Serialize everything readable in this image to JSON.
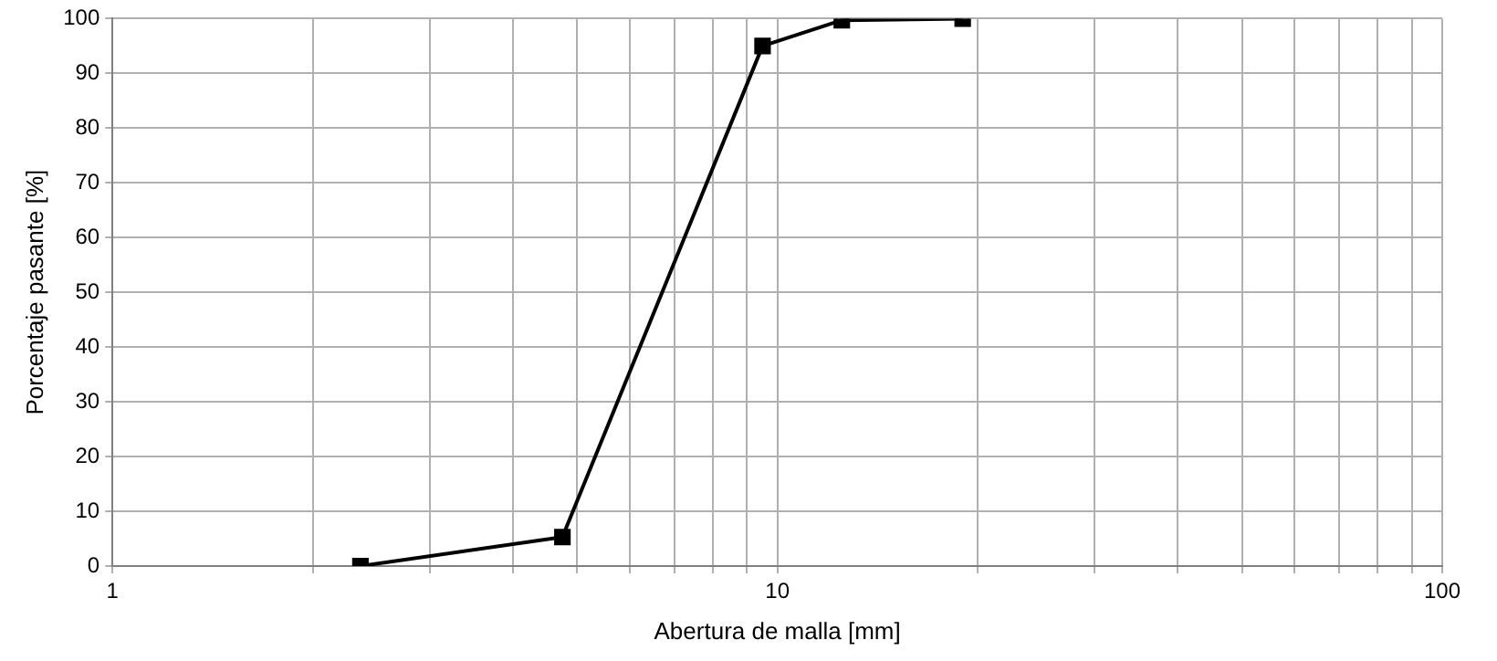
{
  "chart_data": {
    "type": "line",
    "xlabel": "Abertura de malla [mm]",
    "ylabel": "Porcentaje pasante [%]",
    "x": [
      2.36,
      4.75,
      9.5,
      12.5,
      19
    ],
    "series": [
      {
        "color": "#000000",
        "values": [
          0,
          5.3,
          95,
          99.7,
          100
        ]
      }
    ],
    "log": "x",
    "xlim": [
      1,
      100
    ],
    "xticks": [
      1,
      {
        "value": 2,
        "label": null
      },
      {
        "value": 3,
        "label": null
      },
      {
        "value": 4,
        "label": null
      },
      {
        "value": 5,
        "label": null
      },
      {
        "value": 6,
        "label": null
      },
      {
        "value": 7,
        "label": null
      },
      {
        "value": 8,
        "label": null
      },
      {
        "value": 9,
        "label": null
      },
      10,
      {
        "value": 20,
        "label": null
      },
      {
        "value": 30,
        "label": null
      },
      {
        "value": 40,
        "label": null
      },
      {
        "value": 50,
        "label": null
      },
      {
        "value": 60,
        "label": null
      },
      {
        "value": 70,
        "label": null
      },
      {
        "value": 80,
        "label": null
      },
      {
        "value": 90,
        "label": null
      },
      100
    ],
    "ylim": [
      0,
      100
    ],
    "yticks": [
      0,
      10,
      20,
      30,
      40,
      50,
      60,
      70,
      80,
      90,
      100
    ],
    "grid": true,
    "legend": false,
    "marker": "square",
    "line_style": "solid"
  }
}
